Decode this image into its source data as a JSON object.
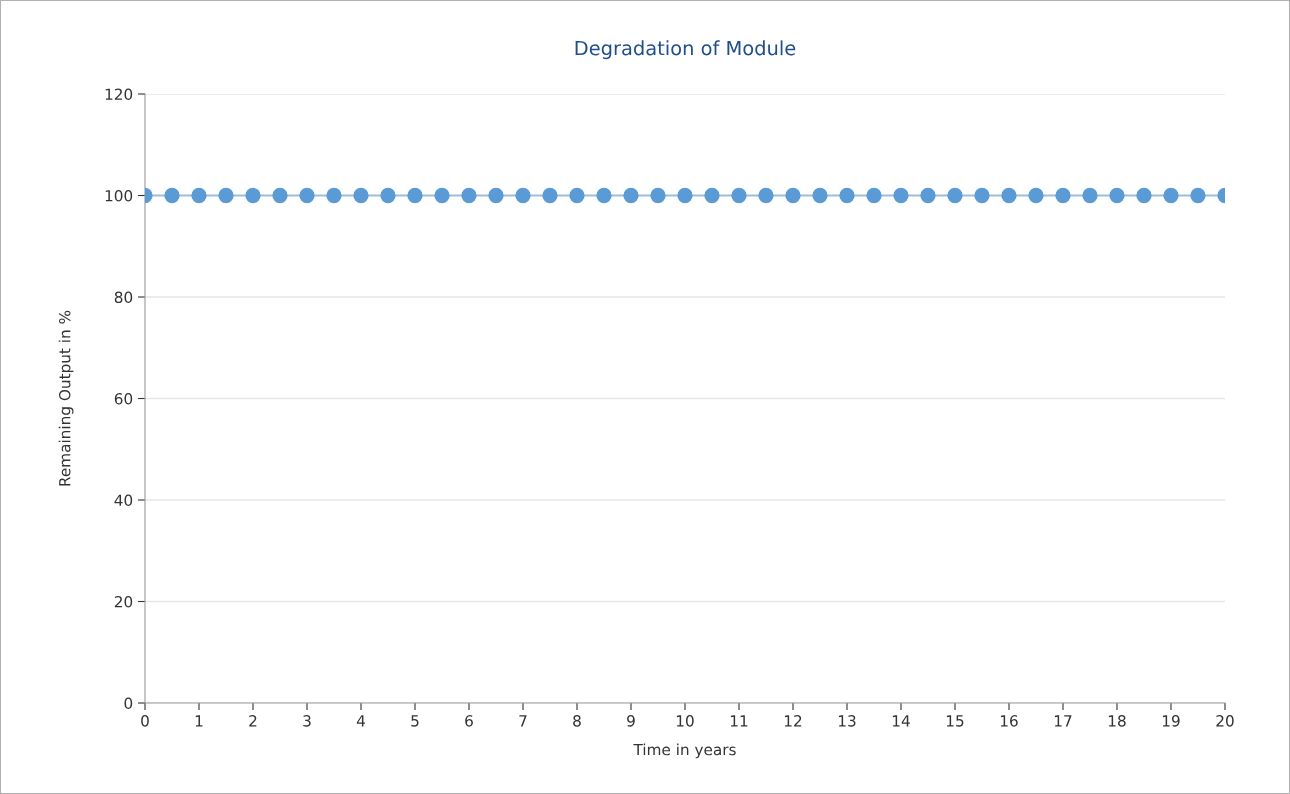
{
  "chart_data": {
    "type": "line",
    "title": "Degradation of Module",
    "xlabel": "Time in years",
    "ylabel": "Remaining Output in %",
    "x": [
      0,
      0.5,
      1,
      1.5,
      2,
      2.5,
      3,
      3.5,
      4,
      4.5,
      5,
      5.5,
      6,
      6.5,
      7,
      7.5,
      8,
      8.5,
      9,
      9.5,
      10,
      10.5,
      11,
      11.5,
      12,
      12.5,
      13,
      13.5,
      14,
      14.5,
      15,
      15.5,
      16,
      16.5,
      17,
      17.5,
      18,
      18.5,
      19,
      19.5,
      20
    ],
    "series": [
      {
        "color": "#5b9bd5",
        "values": [
          100,
          100,
          100,
          100,
          100,
          100,
          100,
          100,
          100,
          100,
          100,
          100,
          100,
          100,
          100,
          100,
          100,
          100,
          100,
          100,
          100,
          100,
          100,
          100,
          100,
          100,
          100,
          100,
          100,
          100,
          100,
          100,
          100,
          100,
          100,
          100,
          100,
          100,
          100,
          100,
          100
        ]
      }
    ],
    "xlim": [
      0,
      20
    ],
    "xticks": [
      0,
      1,
      2,
      3,
      4,
      5,
      6,
      7,
      8,
      9,
      10,
      11,
      12,
      13,
      14,
      15,
      16,
      17,
      18,
      19,
      20
    ],
    "ylim": [
      0,
      120
    ],
    "yticks": [
      0,
      20,
      40,
      60,
      80,
      100,
      120
    ],
    "grid": "y",
    "legend": false,
    "marker": "circle",
    "line_style": "solid"
  }
}
